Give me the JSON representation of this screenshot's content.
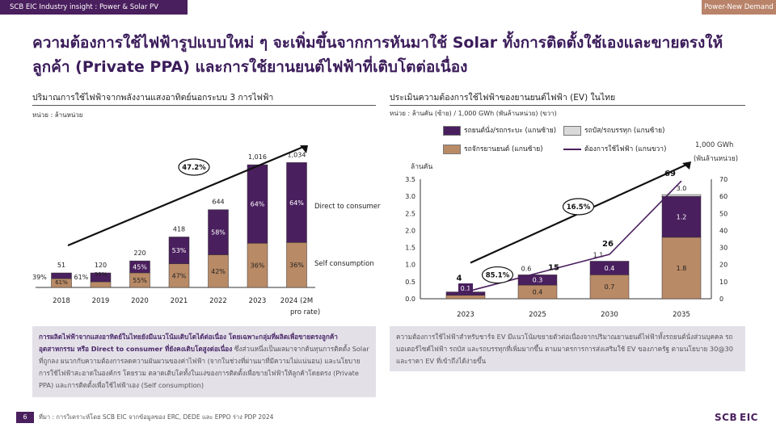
{
  "header": {
    "left": "SCB EIC Industry insight : Power & Solar PV",
    "right": "Power-New Demand"
  },
  "headline": "ความต้องการใช้ไฟฟ้ารูปแบบใหม่ ๆ จะเพิ่มขึ้นจากการหันมาใช้ Solar ทั้งการติดตั้งใช้เองและขายตรงให้ลูกค้า (Private PPA) และการใช้ยานยนต์ไฟฟ้าที่เติบโตต่อเนื่อง",
  "left_panel": {
    "title": "ปริมาณการใช้ไฟฟ้าจากพลังงานแสงอาทิตย์นอกระบบ 3 การไฟฟ้า",
    "unit": "หน่วย : ล้านหน่วย",
    "growth_label": "47.2%",
    "note_bold": "การผลิตไฟฟ้าจากแสงอาทิตย์ในไทยยังมีแนวโน้มเติบโตได้ต่อเนื่อง โดยเฉพาะกลุ่มที่ผลิตเพื่อขายตรงลูกค้าอุตสาหกรรม หรือ Direct to consumer ที่ยังคงเติบโตสูงต่อเนื่อง",
    "note_rest": " ซึ่งส่วนหนึ่งเป็นผลมาจากต้นทุนการติดตั้ง Solar ที่ถูกลง ผนวกกับความต้องการลดความผันผวนของค่าไฟฟ้า (จากในช่วงที่ผ่านมาที่มีความไม่แน่นอน) และนโยบายการใช้ไฟฟ้าสะอาดในองค์กร โดยรวม ตลาดเติบโตทั้งในแง่ของการติดตั้งเพื่อขายไฟฟ้าให้ลูกค้าโดยตรง (Private PPA) และการติดตั้งเพื่อใช้ไฟฟ้าเอง (Self consumption)"
  },
  "right_panel": {
    "title": "ประเมินความต้องการใช้ไฟฟ้าของยานยนต์ไฟฟ้า (EV) ในไทย",
    "unit": "หน่วย : ล้านคัน (ซ้าย) / 1,000 GWh (พันล้านหน่วย) (ขวา)",
    "legend": {
      "passenger": "รถยนต์นั่ง/รถกระบะ (แกนซ้าย)",
      "bus": "รถบัส/รถบรรทุก (แกนซ้าย)",
      "motorcycle": "รถจักรยานยนต์ (แกนซ้าย)",
      "demand": "ต้องการใช้ไฟฟ้า (แกนขวา)"
    },
    "left_axis_title": "ล้านคัน",
    "right_axis_title_1": "1,000 GWh",
    "right_axis_title_2": "(พันล้านหน่วย)",
    "note": "ความต้องการใช้ไฟฟ้าสำหรับชาร์จ EV มีแนวโน้มขยายตัวต่อเนื่องจากปริมาณยานยนต์ไฟฟ้าทั้งรถยนต์นั่งส่วนบุคคล รถมอเตอร์ไซค์ไฟฟ้า รถบัส และรถบรรทุกที่เพิ่มมากขึ้น ตามมาตรการการส่งเสริมใช้ EV ของภาครัฐ ตามนโยบาย 30@30 และราคา EV ที่เข้าถึงได้ง่ายขึ้น"
  },
  "footer": {
    "page": "6",
    "source": "ที่มา : การวิเคราะห์โดย SCB EIC จากข้อมูลของ ERC, DEDE และ EPPO ร่าง PDP 2024",
    "logo": "SCB EIC"
  },
  "colors": {
    "purple": "#4a1f5e",
    "tan": "#b98a66",
    "grey": "#d9d9d9",
    "accent": "#b9836a"
  },
  "chart_data": [
    {
      "type": "bar",
      "title": "ปริมาณการใช้ไฟฟ้าจากพลังงานแสงอาทิตย์นอกระบบ 3 การไฟฟ้า",
      "categories": [
        "2018",
        "2019",
        "2020",
        "2021",
        "2022",
        "2023",
        "2024 (2M",
        "pro rate)"
      ],
      "x": [
        "2018",
        "2019",
        "2020",
        "2021",
        "2022",
        "2023",
        "2024"
      ],
      "last_label_line2": "pro rate)",
      "totals": [
        51,
        120,
        220,
        418,
        644,
        1016,
        1034
      ],
      "series": [
        {
          "name": "Self consumption",
          "share_pct": [
            61,
            39,
            55,
            47,
            42,
            36,
            36
          ],
          "share_labels": [
            "61%",
            "39%",
            "55%",
            "47%",
            "42%",
            "36%",
            "36%"
          ]
        },
        {
          "name": "Direct to consumer",
          "share_pct": [
            39,
            61,
            45,
            53,
            58,
            64,
            64
          ],
          "share_labels": [
            "39%",
            "61%",
            "45%",
            "53%",
            "58%",
            "64%",
            "64%"
          ]
        }
      ],
      "total_labels": [
        "51",
        "120",
        "220",
        "418",
        "644",
        "1,016",
        "1,034"
      ],
      "annotation": "47.2%",
      "ylim": [
        0,
        1150
      ]
    },
    {
      "type": "bar",
      "title": "ประเมินความต้องการใช้ไฟฟ้าของยานยนต์ไฟฟ้า (EV) ในไทย",
      "categories": [
        "2023",
        "2025",
        "2030",
        "2035"
      ],
      "ylabel": "ล้านคัน",
      "y2label": "1,000 GWh (พันล้านหน่วย)",
      "ylim": [
        0,
        3.5
      ],
      "y2lim": [
        0,
        70
      ],
      "yticks": [
        "0.0",
        "0.5",
        "1.0",
        "1.5",
        "2.0",
        "2.5",
        "3.0",
        "3.5"
      ],
      "y2ticks": [
        "0",
        "10",
        "20",
        "30",
        "40",
        "50",
        "60",
        "70"
      ],
      "series": [
        {
          "name": "รถจักรยานยนต์ (แกนซ้าย)",
          "values": [
            0.1,
            0.4,
            0.7,
            1.8
          ],
          "labels": [
            "0.1",
            "0.4",
            "0.7",
            "1.8"
          ]
        },
        {
          "name": "รถยนต์นั่ง/รถกระบะ (แกนซ้าย)",
          "values": [
            0.1,
            0.3,
            0.4,
            1.2
          ],
          "labels": [
            "",
            "0.3",
            "0.4",
            "1.2"
          ]
        },
        {
          "name": "รถบัส/รถบรรทุก (แกนซ้าย)",
          "values": [
            0.0,
            0.0,
            0.0,
            0.05
          ],
          "labels": [
            "",
            "",
            "",
            ""
          ]
        }
      ],
      "top_labels": [
        "",
        "0.6",
        "1.1",
        "3.0"
      ],
      "line": {
        "name": "ต้องการใช้ไฟฟ้า (แกนขวา)",
        "values": [
          4,
          15,
          26,
          69
        ],
        "labels": [
          "4",
          "15",
          "26",
          "69"
        ]
      },
      "growth_labels": [
        "85.1%",
        "16.5%"
      ]
    }
  ]
}
